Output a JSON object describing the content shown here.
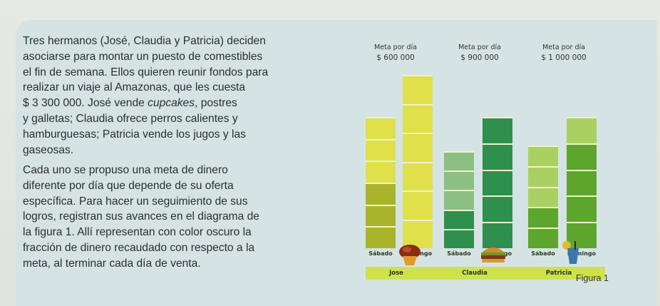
{
  "text": {
    "p1_lines": [
      "Tres hermanos (José, Claudia y Patricia) deciden",
      "asociarse para montar un puesto de comestibles",
      "el fin de semana. Ellos quieren reunir fondos para",
      "realizar un viaje al Amazonas, que les cuesta",
      "$ 3 300 000. José vende cupcakes, postres",
      "y galletas; Claudia ofrece perros calientes y",
      "hamburguesas; Patricia vende los jugos y las",
      "gaseosas."
    ],
    "p2_lines": [
      "Cada uno se propuso una meta de dinero",
      "diferente por día que depende de su oferta",
      "específica. Para hacer un seguimiento de sus",
      "logros, registran sus avances en el diagrama de",
      "la figura 1. Allí representan con color oscuro la",
      "fracción de dinero recaudado con respecto a la",
      "meta, al terminar cada día de venta."
    ],
    "figure_label": "Figura 1"
  },
  "chart_data": {
    "type": "bar",
    "title": "",
    "goals": [
      {
        "label": "Meta por día",
        "amount": "$ 600 000",
        "person": "Jose"
      },
      {
        "label": "Meta por día",
        "amount": "$ 900 000",
        "person": "Claudia"
      },
      {
        "label": "Meta por día",
        "amount": "$ 1 000 000",
        "person": "Patricia"
      }
    ],
    "categories": [
      "Sábado",
      "Domingo",
      "Sábado",
      "Domingo",
      "Sábado",
      "Domingo"
    ],
    "groups": [
      "Jose",
      "Claudia",
      "Patricia"
    ],
    "bars": [
      {
        "person": "Jose",
        "day": "Sábado",
        "parts": 6,
        "filled": 3,
        "goal": 600000
      },
      {
        "person": "Jose",
        "day": "Domingo",
        "parts": 6,
        "filled": 0,
        "goal": 600000
      },
      {
        "person": "Claudia",
        "day": "Sábado",
        "parts": 5,
        "filled": 2,
        "goal": 900000
      },
      {
        "person": "Claudia",
        "day": "Domingo",
        "parts": 5,
        "filled": 5,
        "goal": 900000
      },
      {
        "person": "Patricia",
        "day": "Sábado",
        "parts": 5,
        "filled": 2,
        "goal": 1000000
      },
      {
        "person": "Patricia",
        "day": "Domingo",
        "parts": 5,
        "filled": 4,
        "goal": 1000000
      }
    ],
    "colors": {
      "Jose": {
        "light": "#dfe04a",
        "dark": "#a9b42b"
      },
      "Claudia": {
        "light": "#8bbf84",
        "dark": "#2f8f4e"
      },
      "Patricia": {
        "light": "#a9d162",
        "dark": "#5ea52e"
      }
    },
    "band_color": "#cfe24a",
    "icons": [
      "cupcake-icon",
      "hamburger-icon",
      "juice-icon"
    ]
  }
}
